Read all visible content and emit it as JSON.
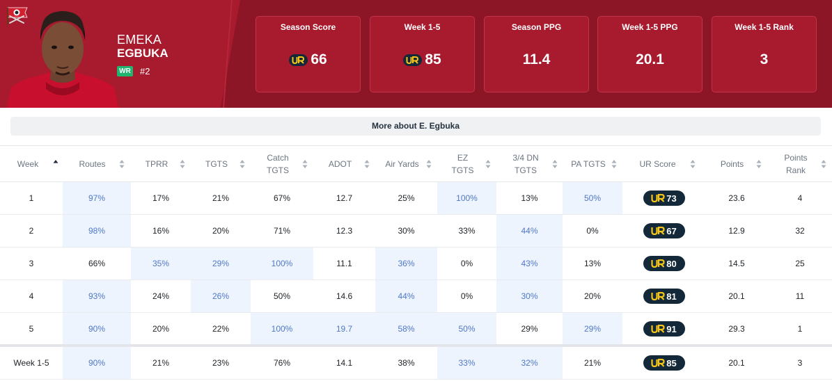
{
  "player": {
    "first_name": "EMEKA",
    "last_name": "EGBUKA",
    "position": "WR",
    "jersey": "#2"
  },
  "stat_cards": [
    {
      "label": "Season Score",
      "value": "66",
      "ur_icon": true
    },
    {
      "label": "Week 1-5",
      "value": "85",
      "ur_icon": true
    },
    {
      "label": "Season PPG",
      "value": "11.4",
      "ur_icon": false
    },
    {
      "label": "Week 1-5 PPG",
      "value": "20.1",
      "ur_icon": false
    },
    {
      "label": "Week 1-5 Rank",
      "value": "3",
      "ur_icon": false
    }
  ],
  "more_button": "More about E. Egbuka",
  "table": {
    "columns": [
      {
        "label": "Week",
        "sort_icon": "sort-up-active-icon"
      },
      {
        "label": "Routes",
        "sort_icon": "sort-icon"
      },
      {
        "label": "TPRR",
        "sort_icon": "sort-icon"
      },
      {
        "label": "TGTS",
        "sort_icon": "sort-icon"
      },
      {
        "label": "Catch TGTS",
        "sort_icon": "sort-icon"
      },
      {
        "label": "ADOT",
        "sort_icon": "sort-icon"
      },
      {
        "label": "Air Yards",
        "sort_icon": "sort-icon"
      },
      {
        "label": "EZ TGTS",
        "sort_icon": "sort-icon"
      },
      {
        "label": "3/4 DN TGTS",
        "sort_icon": "sort-icon"
      },
      {
        "label": "PA TGTS",
        "sort_icon": "sort-icon"
      },
      {
        "label": "UR Score",
        "sort_icon": "sort-icon"
      },
      {
        "label": "Points",
        "sort_icon": "sort-icon"
      },
      {
        "label": "Points Rank",
        "sort_icon": "sort-icon"
      }
    ],
    "rows": [
      {
        "cells": [
          "1",
          "97%",
          "17%",
          "21%",
          "67%",
          "12.7",
          "25%",
          "100%",
          "13%",
          "50%",
          "73",
          "23.6",
          "4"
        ],
        "highlight": [
          1,
          7,
          9
        ]
      },
      {
        "cells": [
          "2",
          "98%",
          "16%",
          "20%",
          "71%",
          "12.3",
          "30%",
          "33%",
          "44%",
          "0%",
          "67",
          "12.9",
          "32"
        ],
        "highlight": [
          1,
          8
        ]
      },
      {
        "cells": [
          "3",
          "66%",
          "35%",
          "29%",
          "100%",
          "11.1",
          "36%",
          "0%",
          "43%",
          "13%",
          "80",
          "14.5",
          "25"
        ],
        "highlight": [
          2,
          3,
          4,
          6,
          8
        ]
      },
      {
        "cells": [
          "4",
          "93%",
          "24%",
          "26%",
          "50%",
          "14.6",
          "44%",
          "0%",
          "30%",
          "20%",
          "81",
          "20.1",
          "11"
        ],
        "highlight": [
          1,
          3,
          6,
          8
        ]
      },
      {
        "cells": [
          "5",
          "90%",
          "20%",
          "22%",
          "100%",
          "19.7",
          "58%",
          "50%",
          "29%",
          "29%",
          "91",
          "29.3",
          "1"
        ],
        "highlight": [
          1,
          4,
          5,
          6,
          7,
          9
        ]
      }
    ],
    "total": {
      "cells": [
        "Week 1-5",
        "90%",
        "21%",
        "23%",
        "76%",
        "14.1",
        "38%",
        "33%",
        "32%",
        "21%",
        "85",
        "20.1",
        "3"
      ],
      "highlight": [
        1,
        7,
        8
      ]
    }
  },
  "colors": {
    "header_dark": "#8c1526",
    "header_red": "#a81a2e",
    "highlight_bg": "#eef4fd",
    "highlight_text": "#4f78c9",
    "ur_badge": "#13293a",
    "ur_logo": "#f5c518",
    "position_badge": "#21b46e"
  }
}
